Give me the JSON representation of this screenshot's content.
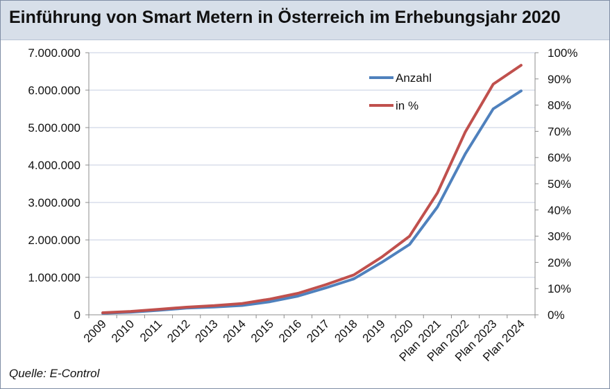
{
  "title": "Einführung von Smart Metern in Österreich im Erhebungsjahr 2020",
  "source": "Quelle: E-Control",
  "chart_data": {
    "type": "line",
    "x": [
      "2009",
      "2010",
      "2011",
      "2012",
      "2013",
      "2014",
      "2015",
      "2016",
      "2017",
      "2018",
      "2019",
      "2020",
      "Plan 2021",
      "Plan 2022",
      "Plan 2023",
      "Plan 2024"
    ],
    "series": [
      {
        "name": "Anzahl",
        "axis": "left",
        "color": "#4f81bd",
        "values": [
          40000,
          70000,
          120000,
          180000,
          210000,
          250000,
          350000,
          500000,
          720000,
          960000,
          1400000,
          1880000,
          2880000,
          4300000,
          5500000,
          5980000
        ]
      },
      {
        "name": "in %",
        "axis": "right",
        "color": "#c0504d",
        "values": [
          0.8,
          1.3,
          2.1,
          2.9,
          3.5,
          4.3,
          6.0,
          8.2,
          11.5,
          15.2,
          22.0,
          30.0,
          46.5,
          69.8,
          88.0,
          95.2
        ]
      }
    ],
    "y_left": {
      "ylim": [
        0,
        7000000
      ],
      "ticks": [
        0,
        1000000,
        2000000,
        3000000,
        4000000,
        5000000,
        6000000,
        7000000
      ],
      "tick_labels": [
        "0",
        "1.000.000",
        "2.000.000",
        "3.000.000",
        "4.000.000",
        "5.000.000",
        "6.000.000",
        "7.000.000"
      ]
    },
    "y_right": {
      "ylim": [
        0,
        100
      ],
      "ticks": [
        0,
        10,
        20,
        30,
        40,
        50,
        60,
        70,
        80,
        90,
        100
      ],
      "tick_labels": [
        "0%",
        "10%",
        "20%",
        "30%",
        "40%",
        "50%",
        "60%",
        "70%",
        "80%",
        "90%",
        "100%"
      ]
    },
    "grid": "horizontal",
    "legend_position": "top-right inside plot"
  }
}
